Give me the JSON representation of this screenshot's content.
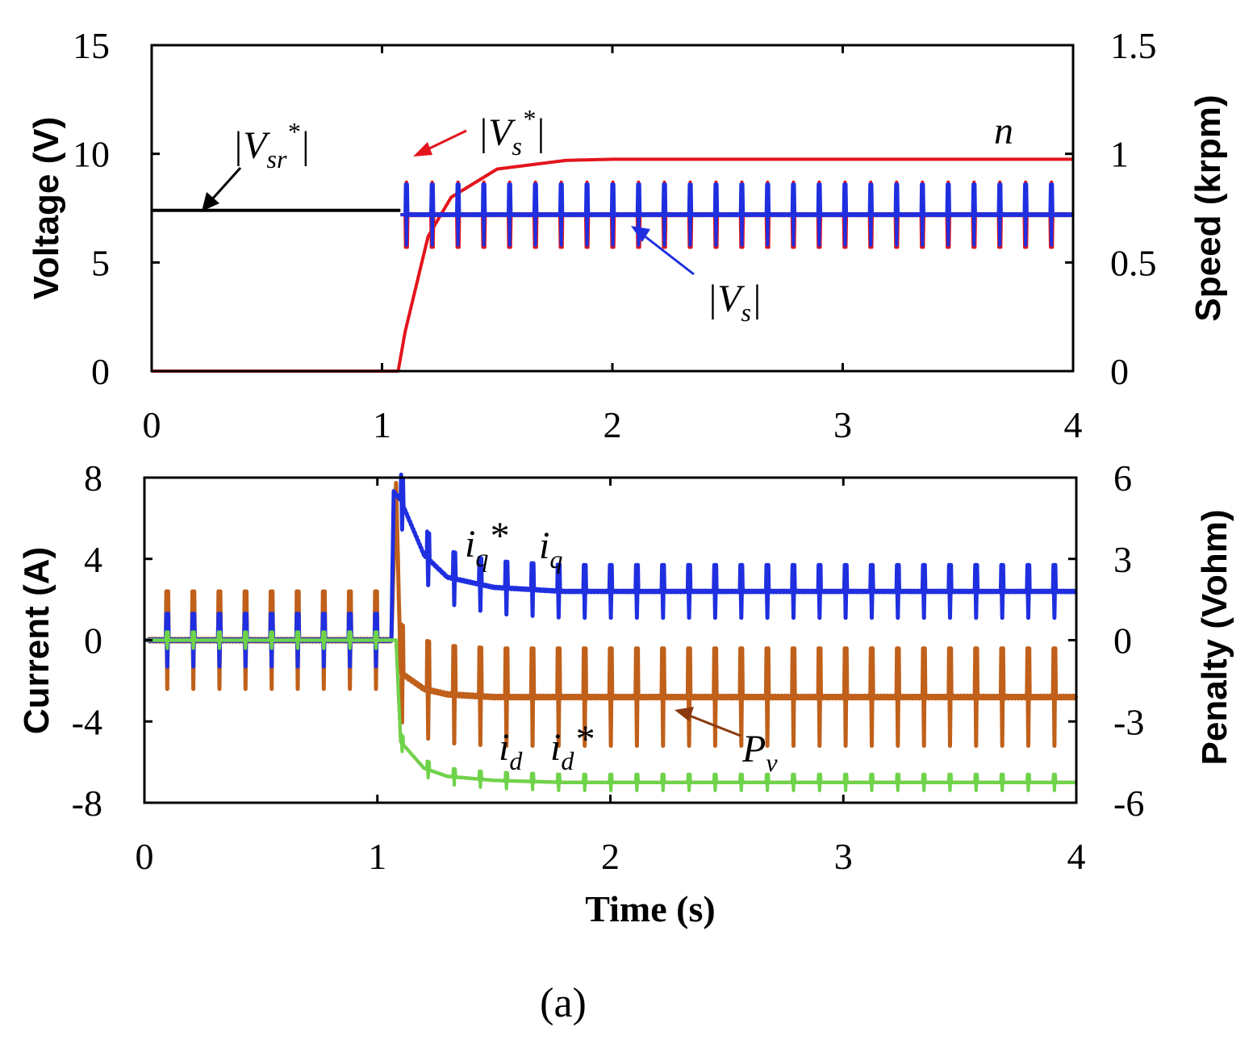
{
  "caption": "(a)",
  "colors": {
    "black": "#000000",
    "red": "#e3141c",
    "blue": "#1f2fe0",
    "brown": "#c0601a",
    "green": "#6fd34a"
  },
  "chart_data": [
    {
      "type": "line",
      "panel": "top",
      "x": [
        0,
        1,
        1.05,
        1.1,
        1.2,
        1.3,
        1.5,
        1.8,
        2,
        3,
        4
      ],
      "xlim": [
        0,
        4
      ],
      "xticks": [
        "0",
        "1",
        "2",
        "3",
        "4"
      ],
      "xlabel": "",
      "ylabel_left": "Voltage (V)",
      "ylabel_right": "Speed (krpm)",
      "ylim_left": [
        0,
        15
      ],
      "ylim_right": [
        0,
        1.5
      ],
      "yticks_left": [
        "0",
        "5",
        "10",
        "15"
      ],
      "yticks_right": [
        "0",
        "0.5",
        "1",
        "1.5"
      ],
      "series": [
        {
          "name": "|Vsr*|",
          "axis": "left",
          "color": "#000000",
          "x": [
            0,
            1.08
          ],
          "values": [
            7.4,
            7.4
          ]
        },
        {
          "name": "|Vs*|",
          "axis": "left",
          "color": "#e3141c",
          "x": [
            1.08,
            4
          ],
          "values": [
            7.2,
            7.2
          ],
          "ripple_amplitude": 1.5
        },
        {
          "name": "|Vs|",
          "axis": "left",
          "color": "#1f2fe0",
          "x": [
            1.08,
            4
          ],
          "values": [
            7.2,
            7.2
          ],
          "ripple_amplitude": 1.4
        },
        {
          "name": "n",
          "axis": "right",
          "color": "#e3141c",
          "x": [
            0,
            1.07,
            1.1,
            1.2,
            1.3,
            1.5,
            1.8,
            2,
            3,
            4
          ],
          "values": [
            0,
            0,
            0.18,
            0.62,
            0.8,
            0.93,
            0.97,
            0.975,
            0.975,
            0.975
          ]
        }
      ],
      "annotations": [
        {
          "base": "|V",
          "sub": "sr",
          "sup": "*",
          "end": "|"
        },
        {
          "base": "|V",
          "sub": "s",
          "sup": "*",
          "end": "|"
        },
        {
          "base": "|V",
          "sub": "s",
          "sup": "",
          "end": "|"
        },
        {
          "base": "n",
          "sub": "",
          "sup": "",
          "end": ""
        }
      ]
    },
    {
      "type": "line",
      "panel": "bottom",
      "x": [
        0,
        1,
        1.05,
        1.1,
        1.2,
        1.3,
        1.5,
        1.8,
        2,
        3,
        4
      ],
      "xlim": [
        0,
        4
      ],
      "xticks": [
        "0",
        "1",
        "2",
        "3",
        "4"
      ],
      "xlabel": "Time (s)",
      "ylabel_left": "Current (A)",
      "ylabel_right": "Penalty (Vohm)",
      "ylim_left": [
        -8,
        8
      ],
      "ylim_right": [
        -6,
        6
      ],
      "yticks_left": [
        "-8",
        "-4",
        "0",
        "4",
        "8"
      ],
      "yticks_right": [
        "-6",
        "-3",
        "0",
        "3",
        "6"
      ],
      "series": [
        {
          "name": "iq*",
          "axis": "left",
          "color": "#1f2fe0",
          "x": [
            0,
            1.06,
            1.07,
            1.1,
            1.2,
            1.3,
            1.5,
            1.8,
            2,
            3,
            4
          ],
          "values": [
            0,
            0,
            7.3,
            6.9,
            4.2,
            3.1,
            2.6,
            2.4,
            2.4,
            2.4,
            2.4
          ],
          "ripple_amplitude": 1.3
        },
        {
          "name": "iq",
          "axis": "left",
          "color": "#1f2fe0",
          "x": [
            0,
            1.06,
            1.07,
            1.1,
            1.2,
            1.3,
            1.5,
            1.8,
            2,
            3,
            4
          ],
          "values": [
            0,
            0,
            7.3,
            6.9,
            4.2,
            3.1,
            2.6,
            2.4,
            2.4,
            2.4,
            2.4
          ]
        },
        {
          "name": "Pv",
          "axis": "right",
          "color": "#c0601a",
          "x": [
            0,
            1.06,
            1.08,
            1.1,
            1.2,
            1.3,
            1.5,
            1.8,
            2,
            3,
            4
          ],
          "values": [
            0,
            0,
            5.8,
            -1.2,
            -1.8,
            -2.0,
            -2.1,
            -2.1,
            -2.1,
            -2.1,
            -2.1
          ],
          "ripple_amplitude": 1.8
        },
        {
          "name": "id",
          "axis": "left",
          "color": "#e3141c",
          "x": [
            0,
            1.08,
            1.1,
            1.2,
            1.3,
            1.5,
            1.8,
            2,
            3,
            4
          ],
          "values": [
            0,
            0,
            -5.0,
            -6.3,
            -6.7,
            -6.9,
            -7.0,
            -7.0,
            -7.0,
            -7.0
          ]
        },
        {
          "name": "id*",
          "axis": "left",
          "color": "#6fd34a",
          "x": [
            0,
            1.08,
            1.1,
            1.2,
            1.3,
            1.5,
            1.8,
            2,
            3,
            4
          ],
          "values": [
            0,
            0,
            -5.0,
            -6.3,
            -6.7,
            -6.9,
            -7.0,
            -7.0,
            -7.0,
            -7.0
          ],
          "ripple_amplitude": 0.4
        }
      ],
      "annotations": [
        {
          "base": "i",
          "sub": "q",
          "sup": "*",
          "end": ""
        },
        {
          "base": "i",
          "sub": "q",
          "sup": "",
          "end": ""
        },
        {
          "base": "i",
          "sub": "d",
          "sup": "",
          "end": ""
        },
        {
          "base": "i",
          "sub": "d",
          "sup": "*",
          "end": ""
        },
        {
          "base": "P",
          "sub": "v",
          "sup": "",
          "end": ""
        }
      ]
    }
  ]
}
